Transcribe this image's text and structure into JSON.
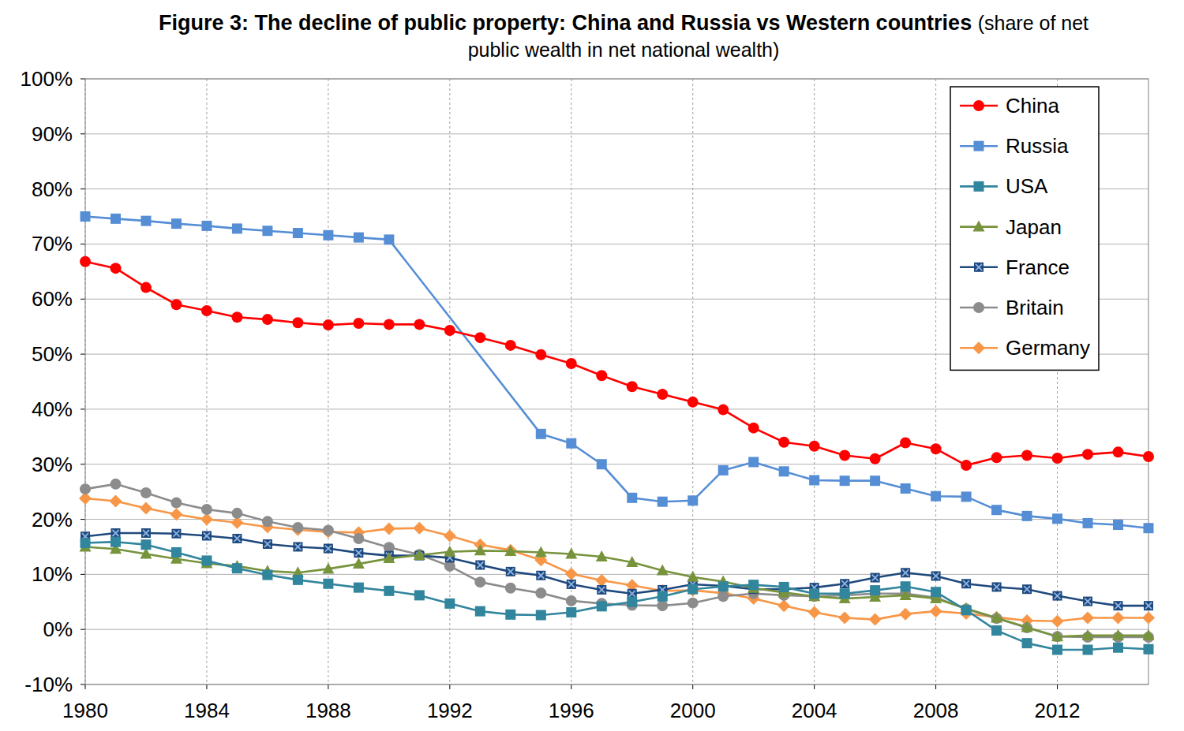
{
  "chart_data": {
    "type": "line",
    "title": "Figure 3: The decline of public property: China and Russia vs Western countries",
    "subtitle": "(share of net public wealth in net national wealth)",
    "x": [
      1980,
      1981,
      1982,
      1983,
      1984,
      1985,
      1986,
      1987,
      1988,
      1989,
      1990,
      1991,
      1992,
      1993,
      1994,
      1995,
      1996,
      1997,
      1998,
      1999,
      2000,
      2001,
      2002,
      2003,
      2004,
      2005,
      2006,
      2007,
      2008,
      2009,
      2010,
      2011,
      2012,
      2013,
      2014,
      2015
    ],
    "xlim": [
      1980,
      2015
    ],
    "xticks": [
      1980,
      1984,
      1988,
      1992,
      1996,
      2000,
      2004,
      2008,
      2012
    ],
    "ylim": [
      -10,
      100
    ],
    "yticks": [
      {
        "value": -10,
        "label": "-10%"
      },
      {
        "value": 0,
        "label": "0%"
      },
      {
        "value": 10,
        "label": "10%"
      },
      {
        "value": 20,
        "label": "20%"
      },
      {
        "value": 30,
        "label": "30%"
      },
      {
        "value": 40,
        "label": "40%"
      },
      {
        "value": 50,
        "label": "50%"
      },
      {
        "value": 60,
        "label": "60%"
      },
      {
        "value": 70,
        "label": "70%"
      },
      {
        "value": 80,
        "label": "80%"
      },
      {
        "value": 90,
        "label": "90%"
      },
      {
        "value": 100,
        "label": "100%"
      }
    ],
    "grid": true,
    "legend": "upper right",
    "series": [
      {
        "name": "China",
        "color": "#ff0000",
        "marker": "circle",
        "values": [
          66.8,
          65.6,
          62.1,
          59,
          57.9,
          56.7,
          56.3,
          55.7,
          55.3,
          55.6,
          55.4,
          55.4,
          54.3,
          53,
          51.6,
          49.9,
          48.3,
          46.1,
          44.1,
          42.7,
          41.3,
          39.9,
          36.6,
          34,
          33.3,
          31.6,
          31,
          33.9,
          32.8,
          29.8,
          31.2,
          31.6,
          31.1,
          31.8,
          32.2,
          31.4
        ]
      },
      {
        "name": "Russia",
        "color": "#558ed5",
        "marker": "square",
        "x": [
          1980,
          1981,
          1982,
          1983,
          1984,
          1985,
          1986,
          1987,
          1988,
          1989,
          1990,
          1995,
          1996,
          1997,
          1998,
          1999,
          2000,
          2001,
          2002,
          2003,
          2004,
          2005,
          2006,
          2007,
          2008,
          2009,
          2010,
          2011,
          2012,
          2013,
          2014,
          2015
        ],
        "values": [
          75,
          74.6,
          74.2,
          73.7,
          73.3,
          72.8,
          72.4,
          72,
          71.6,
          71.2,
          70.8,
          35.5,
          33.8,
          30,
          23.9,
          23.2,
          23.4,
          28.9,
          30.4,
          28.7,
          27.1,
          27,
          27,
          25.6,
          24.2,
          24.1,
          21.7,
          20.6,
          20.1,
          19.3,
          19,
          18.4
        ]
      },
      {
        "name": "USA",
        "color": "#31859c",
        "marker": "square",
        "values": [
          15.7,
          15.9,
          15.4,
          14,
          12.5,
          11.1,
          9.9,
          9,
          8.3,
          7.6,
          7,
          6.2,
          4.7,
          3.3,
          2.7,
          2.6,
          3.1,
          4.2,
          5,
          6,
          7.3,
          7.8,
          8.1,
          7.7,
          6.5,
          6.5,
          7.1,
          7.8,
          6.8,
          3.5,
          -0.2,
          -2.5,
          -3.7,
          -3.7,
          -3.3,
          -3.6
        ]
      },
      {
        "name": "Japan",
        "color": "#77933c",
        "marker": "triangle",
        "values": [
          15,
          14.6,
          13.7,
          12.8,
          12,
          11.5,
          10.6,
          10.3,
          11,
          11.9,
          12.9,
          13.5,
          14.1,
          14.3,
          14.2,
          14,
          13.7,
          13.2,
          12.2,
          10.7,
          9.5,
          8.7,
          7.5,
          6.7,
          6,
          5.6,
          5.9,
          6.2,
          5.6,
          3.8,
          2.1,
          0.4,
          -1.3,
          -1.1,
          -1.1,
          -1.1
        ]
      },
      {
        "name": "France",
        "color": "#1f497d",
        "marker": "x",
        "values": [
          16.9,
          17.5,
          17.5,
          17.4,
          17,
          16.5,
          15.5,
          15,
          14.7,
          13.9,
          13.4,
          13.4,
          13,
          11.7,
          10.5,
          9.8,
          8.2,
          7.2,
          6.5,
          7.2,
          8.2,
          7.9,
          7.3,
          7.3,
          7.6,
          8.3,
          9.4,
          10.3,
          9.7,
          8.3,
          7.7,
          7.3,
          6.1,
          5.1,
          4.3,
          4.3
        ]
      },
      {
        "name": "Britain",
        "color": "#8c8c8c",
        "marker": "circle",
        "values": [
          25.5,
          26.4,
          24.8,
          23,
          21.8,
          21.1,
          19.6,
          18.5,
          18,
          16.5,
          14.9,
          13.6,
          11.5,
          8.6,
          7.5,
          6.6,
          5.2,
          4.7,
          4.4,
          4.3,
          4.8,
          6,
          6.5,
          6.2,
          6,
          6.2,
          6.5,
          6.5,
          5.8,
          3.7,
          2,
          0.3,
          -1.3,
          -1.4,
          -1.4,
          -1.4
        ]
      },
      {
        "name": "Germany",
        "color": "#f79646",
        "marker": "diamond",
        "values": [
          23.8,
          23.3,
          22,
          20.9,
          20,
          19.4,
          18.6,
          18.1,
          17.7,
          17.6,
          18.3,
          18.4,
          17,
          15.4,
          14.4,
          12.6,
          10.1,
          8.9,
          8,
          7,
          7.1,
          6.6,
          5.6,
          4.3,
          3.1,
          2.1,
          1.8,
          2.8,
          3.3,
          2.9,
          2.2,
          1.6,
          1.5,
          2.1,
          2.1,
          2.1
        ]
      }
    ]
  }
}
